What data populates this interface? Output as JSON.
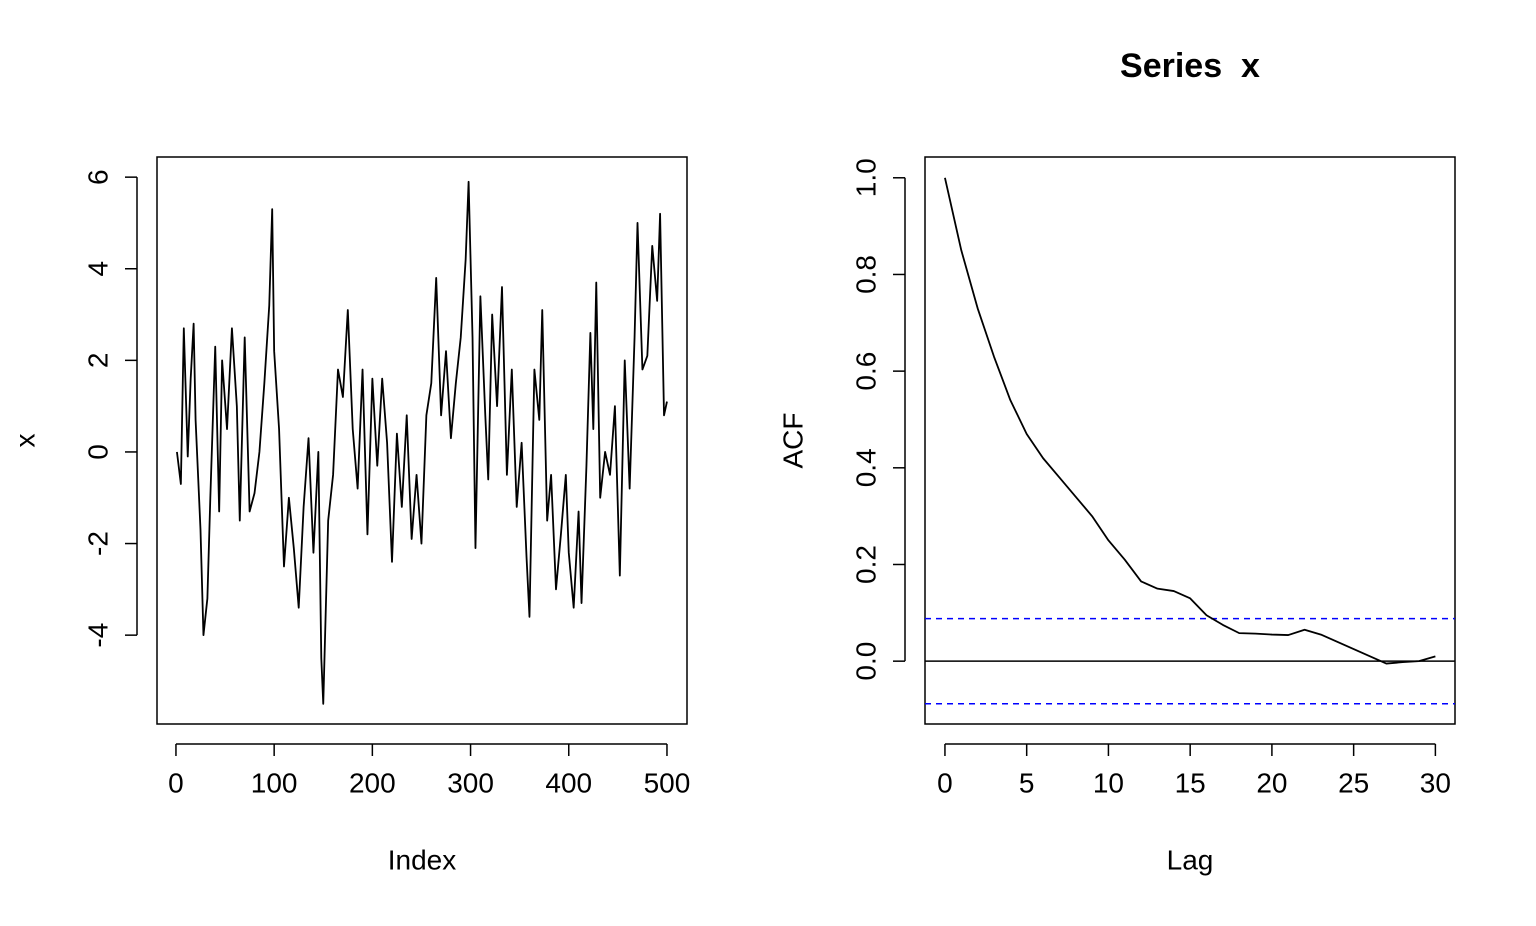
{
  "chart_data": [
    {
      "type": "line",
      "xlabel": "Index",
      "ylabel": "x",
      "x": [
        1,
        5,
        8,
        12,
        15,
        18,
        20,
        25,
        28,
        32,
        35,
        40,
        44,
        47,
        52,
        57,
        62,
        65,
        70,
        75,
        80,
        85,
        90,
        95,
        98,
        100,
        105,
        110,
        115,
        120,
        125,
        130,
        135,
        140,
        145,
        148,
        150,
        155,
        160,
        165,
        170,
        175,
        180,
        185,
        190,
        195,
        200,
        205,
        210,
        215,
        220,
        225,
        230,
        235,
        240,
        245,
        250,
        255,
        260,
        265,
        270,
        275,
        280,
        285,
        290,
        295,
        298,
        302,
        305,
        310,
        315,
        318,
        322,
        327,
        332,
        337,
        342,
        347,
        352,
        357,
        360,
        365,
        370,
        373,
        378,
        382,
        387,
        392,
        397,
        400,
        405,
        410,
        413,
        418,
        422,
        425,
        428,
        432,
        437,
        442,
        447,
        452,
        457,
        462,
        467,
        470,
        475,
        480,
        485,
        490,
        493,
        497,
        500
      ],
      "values": [
        0,
        -0.7,
        2.7,
        -0.1,
        1.6,
        2.8,
        0.7,
        -1.7,
        -4.0,
        -3.2,
        -1.0,
        2.3,
        -1.3,
        2.0,
        0.5,
        2.7,
        1.0,
        -1.5,
        2.5,
        -1.3,
        -0.9,
        0,
        1.5,
        3.2,
        5.3,
        2.2,
        0.5,
        -2.5,
        -1.0,
        -2.1,
        -3.4,
        -1.2,
        0.3,
        -2.2,
        0.0,
        -4.5,
        -5.5,
        -1.5,
        -0.5,
        1.8,
        1.2,
        3.1,
        0.5,
        -0.8,
        1.8,
        -1.8,
        1.6,
        -0.3,
        1.6,
        0.2,
        -2.4,
        0.4,
        -1.2,
        0.8,
        -1.9,
        -0.5,
        -2.0,
        0.8,
        1.5,
        3.8,
        0.8,
        2.2,
        0.3,
        1.5,
        2.5,
        4.2,
        5.9,
        2.5,
        -2.1,
        3.4,
        0.8,
        -0.6,
        3.0,
        1.0,
        3.6,
        -0.5,
        1.8,
        -1.2,
        0.2,
        -2.3,
        -3.6,
        1.8,
        0.7,
        3.1,
        -1.5,
        -0.5,
        -3.0,
        -1.8,
        -0.5,
        -2.2,
        -3.4,
        -1.3,
        -3.3,
        -0.3,
        2.6,
        0.5,
        3.7,
        -1.0,
        0.0,
        -0.5,
        1.0,
        -2.7,
        2.0,
        -0.8,
        2.5,
        5.0,
        1.8,
        2.1,
        4.5,
        3.3,
        5.2,
        0.8,
        1.1
      ],
      "color": "#000000",
      "xlim": [
        -19.3,
        520.4
      ],
      "xticks": [
        0,
        100,
        200,
        300,
        400,
        500
      ],
      "ylim": [
        -5.94,
        6.44
      ],
      "yticks": [
        -4,
        -2,
        0,
        2,
        4,
        6
      ]
    },
    {
      "type": "line",
      "title": "Series  x",
      "xlabel": "Lag",
      "ylabel": "ACF",
      "x": [
        0,
        1,
        2,
        3,
        4,
        5,
        6,
        7,
        8,
        9,
        10,
        11,
        12,
        13,
        14,
        15,
        16,
        17,
        18,
        19,
        20,
        21,
        22,
        23,
        24,
        25,
        26,
        27,
        28,
        29,
        30
      ],
      "values": [
        1.0,
        0.85,
        0.73,
        0.63,
        0.54,
        0.47,
        0.42,
        0.38,
        0.34,
        0.3,
        0.25,
        0.21,
        0.165,
        0.15,
        0.145,
        0.13,
        0.095,
        0.075,
        0.058,
        0.057,
        0.055,
        0.054,
        0.065,
        0.055,
        0.04,
        0.025,
        0.01,
        -0.005,
        -0.002,
        0.0,
        0.01
      ],
      "color": "#000000",
      "ref_lines": [
        0
      ],
      "conf_lines": [
        0.088,
        -0.088
      ],
      "conf_color": "#0000ff",
      "xlim": [
        -1.22,
        31.2
      ],
      "xticks": [
        0,
        5,
        10,
        15,
        20,
        25,
        30
      ],
      "ylim": [
        -0.13,
        1.043
      ],
      "yticks": [
        {
          "value": 0,
          "label": "0.0"
        },
        0.2,
        0.4,
        0.6,
        0.8,
        {
          "value": 1,
          "label": "1.0"
        }
      ]
    }
  ]
}
